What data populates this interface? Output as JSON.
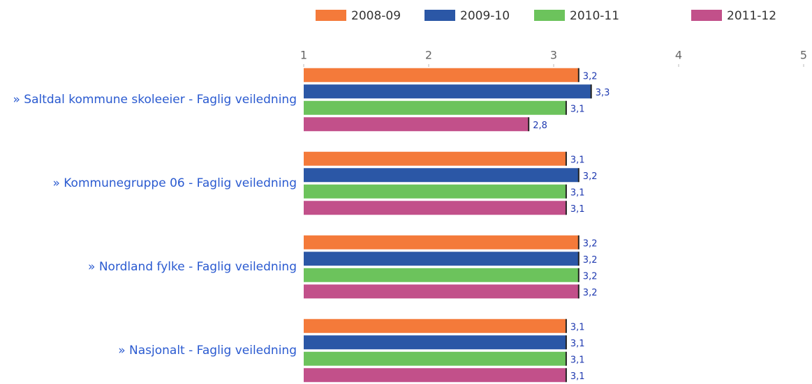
{
  "chart_data": {
    "type": "hbar",
    "categories": [
      "» Saltdal kommune skoleeier - Faglig veiledning",
      "» Kommunegruppe 06 - Faglig veiledning",
      "» Nordland fylke - Faglig veiledning",
      "» Nasjonalt - Faglig veiledning"
    ],
    "series": [
      {
        "name": "2008-09",
        "color": "#f47a3a",
        "values": [
          3.2,
          3.1,
          3.2,
          3.1
        ],
        "value_labels": [
          "3,2",
          "3,1",
          "3,2",
          "3,1"
        ]
      },
      {
        "name": "2009-10",
        "color": "#2b57a6",
        "values": [
          3.3,
          3.2,
          3.2,
          3.1
        ],
        "value_labels": [
          "3,3",
          "3,2",
          "3,2",
          "3,1"
        ]
      },
      {
        "name": "2010-11",
        "color": "#6cc35c",
        "values": [
          3.1,
          3.1,
          3.2,
          3.1
        ],
        "value_labels": [
          "3,1",
          "3,1",
          "3,2",
          "3,1"
        ]
      },
      {
        "name": "2011-12",
        "color": "#c2508a",
        "values": [
          2.8,
          3.1,
          3.2,
          3.1
        ],
        "value_labels": [
          "2,8",
          "3,1",
          "3,2",
          "3,1"
        ]
      }
    ],
    "xlim": [
      1,
      5
    ],
    "xticks": [
      1,
      2,
      3,
      4,
      5
    ],
    "legend": "top"
  }
}
